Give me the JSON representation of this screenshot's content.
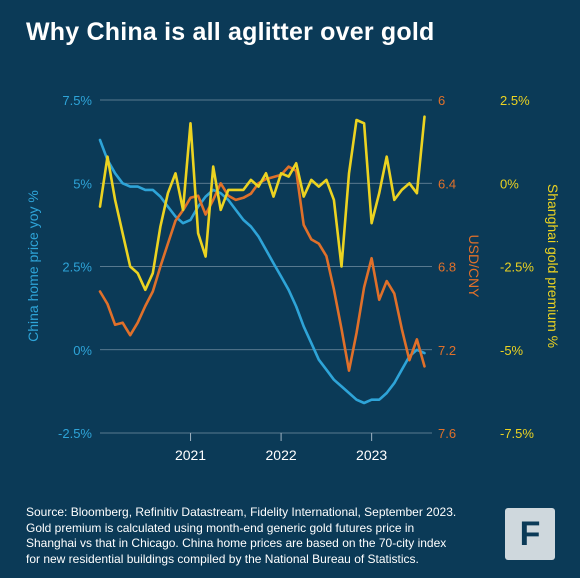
{
  "title": "Why China is all aglitter over gold",
  "footer": {
    "lines": [
      "Source: Bloomberg, Refinitiv Datastream, Fidelity International, September 2023.",
      "Gold premium is calculated using month-end generic gold futures price in",
      "Shanghai vs that in Chicago. China home prices are based on the 70-city index",
      "for new residential buildings compiled by the National Bureau of Statistics."
    ]
  },
  "logo": {
    "letter": "F"
  },
  "colors": {
    "background": "#0b3a57",
    "home_price": "#2ea4d8",
    "usdcny": "#e0702a",
    "gold_premium": "#ecd321",
    "grid": "#9fb3c2"
  },
  "chart_data": {
    "type": "line",
    "xlabel": "",
    "x_ticks": [
      "2021",
      "2022",
      "2023"
    ],
    "x_tick_dates": [
      "2021-01",
      "2022-01",
      "2023-01"
    ],
    "xlim": [
      "2020-01",
      "2023-09"
    ],
    "axes": {
      "left": {
        "label": "China home price yoy %",
        "range": [
          -2.5,
          7.5
        ],
        "ticks": [
          "7.5%",
          "5%",
          "2.5%",
          "0%",
          "-2.5%"
        ],
        "tick_values": [
          7.5,
          5,
          2.5,
          0,
          -2.5
        ]
      },
      "right_inner": {
        "label": "USD/CNY",
        "range": [
          7.6,
          6.0
        ],
        "inverted": true,
        "ticks": [
          "6",
          "6.4",
          "6.8",
          "7.2",
          "7.6"
        ],
        "tick_values": [
          6.0,
          6.4,
          6.8,
          7.2,
          7.6
        ]
      },
      "right_outer": {
        "label": "Shanghai gold premium %",
        "range": [
          -7.5,
          2.5
        ],
        "ticks": [
          "2.5%",
          "0%",
          "-2.5%",
          "-5%",
          "-7.5%"
        ],
        "tick_values": [
          2.5,
          0,
          -2.5,
          -5,
          -7.5
        ]
      }
    },
    "series": [
      {
        "name": "China home price yoy %",
        "axis": "left",
        "x": [
          "2020-01",
          "2020-02",
          "2020-03",
          "2020-04",
          "2020-05",
          "2020-06",
          "2020-07",
          "2020-08",
          "2020-09",
          "2020-10",
          "2020-11",
          "2020-12",
          "2021-01",
          "2021-02",
          "2021-03",
          "2021-04",
          "2021-05",
          "2021-06",
          "2021-07",
          "2021-08",
          "2021-09",
          "2021-10",
          "2021-11",
          "2021-12",
          "2022-01",
          "2022-02",
          "2022-03",
          "2022-04",
          "2022-05",
          "2022-06",
          "2022-07",
          "2022-08",
          "2022-09",
          "2022-10",
          "2022-11",
          "2022-12",
          "2023-01",
          "2023-02",
          "2023-03",
          "2023-04",
          "2023-05",
          "2023-06",
          "2023-07",
          "2023-08"
        ],
        "values": [
          6.3,
          5.7,
          5.3,
          5.0,
          4.9,
          4.9,
          4.8,
          4.8,
          4.6,
          4.3,
          4.0,
          3.8,
          3.9,
          4.3,
          4.6,
          4.8,
          4.7,
          4.5,
          4.2,
          3.9,
          3.7,
          3.4,
          3.0,
          2.6,
          2.2,
          1.8,
          1.3,
          0.7,
          0.2,
          -0.3,
          -0.6,
          -0.9,
          -1.1,
          -1.3,
          -1.5,
          -1.6,
          -1.5,
          -1.5,
          -1.3,
          -1.0,
          -0.6,
          -0.2,
          0.0,
          -0.1
        ]
      },
      {
        "name": "USD/CNY",
        "axis": "right_inner",
        "x": [
          "2020-01",
          "2020-02",
          "2020-03",
          "2020-04",
          "2020-05",
          "2020-06",
          "2020-07",
          "2020-08",
          "2020-09",
          "2020-10",
          "2020-11",
          "2020-12",
          "2021-01",
          "2021-02",
          "2021-03",
          "2021-04",
          "2021-05",
          "2021-06",
          "2021-07",
          "2021-08",
          "2021-09",
          "2021-10",
          "2021-11",
          "2021-12",
          "2022-01",
          "2022-02",
          "2022-03",
          "2022-04",
          "2022-05",
          "2022-06",
          "2022-07",
          "2022-08",
          "2022-09",
          "2022-10",
          "2022-11",
          "2022-12",
          "2023-01",
          "2023-02",
          "2023-03",
          "2023-04",
          "2023-05",
          "2023-06",
          "2023-07",
          "2023-08"
        ],
        "values": [
          6.92,
          6.98,
          7.08,
          7.07,
          7.13,
          7.07,
          6.99,
          6.92,
          6.8,
          6.69,
          6.58,
          6.53,
          6.47,
          6.46,
          6.55,
          6.48,
          6.4,
          6.46,
          6.48,
          6.47,
          6.45,
          6.4,
          6.38,
          6.37,
          6.36,
          6.32,
          6.34,
          6.6,
          6.67,
          6.69,
          6.75,
          6.91,
          7.1,
          7.3,
          7.12,
          6.9,
          6.76,
          6.96,
          6.87,
          6.93,
          7.1,
          7.25,
          7.15,
          7.28
        ]
      },
      {
        "name": "Shanghai gold premium %",
        "axis": "right_outer",
        "x": [
          "2020-01",
          "2020-02",
          "2020-03",
          "2020-04",
          "2020-05",
          "2020-06",
          "2020-07",
          "2020-08",
          "2020-09",
          "2020-10",
          "2020-11",
          "2020-12",
          "2021-01",
          "2021-02",
          "2021-03",
          "2021-04",
          "2021-05",
          "2021-06",
          "2021-07",
          "2021-08",
          "2021-09",
          "2021-10",
          "2021-11",
          "2021-12",
          "2022-01",
          "2022-02",
          "2022-03",
          "2022-04",
          "2022-05",
          "2022-06",
          "2022-07",
          "2022-08",
          "2022-09",
          "2022-10",
          "2022-11",
          "2022-12",
          "2023-01",
          "2023-02",
          "2023-03",
          "2023-04",
          "2023-05",
          "2023-06",
          "2023-07",
          "2023-08"
        ],
        "values": [
          -0.7,
          0.8,
          -0.5,
          -1.5,
          -2.5,
          -2.7,
          -3.2,
          -2.7,
          -1.3,
          -0.3,
          0.3,
          -0.8,
          1.8,
          -1.5,
          -2.2,
          0.5,
          -0.8,
          -0.2,
          -0.2,
          -0.2,
          0.1,
          -0.1,
          0.3,
          -0.4,
          0.3,
          0.2,
          0.6,
          -0.4,
          0.1,
          -0.1,
          0.1,
          -0.5,
          -2.5,
          0.3,
          1.9,
          1.8,
          -1.2,
          -0.3,
          0.8,
          -0.5,
          -0.2,
          0.0,
          -0.3,
          2.0
        ]
      }
    ],
    "grid": true,
    "legend": "none"
  }
}
